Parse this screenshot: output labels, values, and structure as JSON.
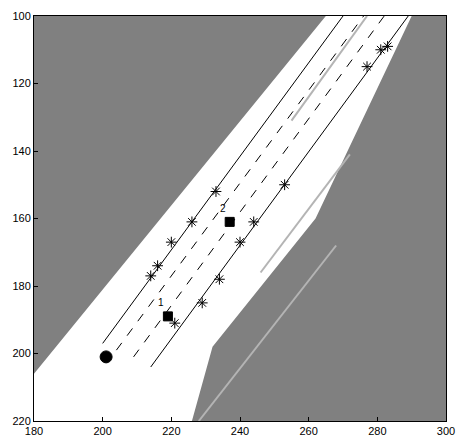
{
  "chart_data": {
    "type": "scatter",
    "xlim": [
      180,
      300
    ],
    "ylim": [
      220,
      100
    ],
    "xticks": [
      180,
      200,
      220,
      240,
      260,
      280,
      300
    ],
    "yticks": [
      100,
      120,
      140,
      160,
      180,
      200,
      220
    ],
    "grid": false,
    "series": [
      {
        "type": "area",
        "color": "#ffffff",
        "x": [
          180,
          180,
          265,
          290,
          262,
          232,
          226,
          180
        ],
        "y": [
          220,
          206,
          100,
          100,
          160,
          198,
          220,
          220
        ]
      },
      {
        "type": "line",
        "color": "#b4b4b4",
        "line_style": "solid",
        "x": [
          255,
          277
        ],
        "y": [
          131,
          100
        ]
      },
      {
        "type": "line",
        "color": "#b4b4b4",
        "line_style": "solid",
        "x": [
          246,
          272
        ],
        "y": [
          176,
          141
        ]
      },
      {
        "type": "line",
        "color": "#b4b4b4",
        "line_style": "solid",
        "x": [
          228,
          268
        ],
        "y": [
          220,
          168
        ]
      },
      {
        "type": "line",
        "color": "#000000",
        "line_style": "solid",
        "x": [
          200,
          270
        ],
        "y": [
          197,
          100
        ]
      },
      {
        "type": "line",
        "color": "#000000",
        "line_style": "dashed",
        "x": [
          204,
          276
        ],
        "y": [
          199,
          100
        ]
      },
      {
        "type": "line",
        "color": "#000000",
        "line_style": "dashed",
        "x": [
          209,
          282
        ],
        "y": [
          201,
          100
        ]
      },
      {
        "type": "line",
        "color": "#000000",
        "line_style": "solid",
        "x": [
          214,
          289
        ],
        "y": [
          204,
          100
        ]
      },
      {
        "type": "scatter",
        "color": "#000000",
        "marker": "asterisk",
        "x": [
          233,
          226,
          220,
          216,
          214,
          234,
          229,
          221,
          244,
          240,
          253,
          277,
          281,
          283
        ],
        "y": [
          152,
          161,
          167,
          174,
          177,
          178,
          185,
          191,
          161,
          167,
          150,
          115,
          110,
          109
        ]
      },
      {
        "type": "scatter",
        "color": "#000000",
        "marker": "square",
        "x": [
          219,
          237
        ],
        "y": [
          189,
          161
        ]
      },
      {
        "type": "scatter",
        "color": "#000000",
        "marker": "circle",
        "x": [
          201
        ],
        "y": [
          201
        ]
      }
    ],
    "annotations": [
      {
        "text": "1",
        "x": 217,
        "y": 185
      },
      {
        "text": "2",
        "x": 235,
        "y": 157
      }
    ]
  }
}
